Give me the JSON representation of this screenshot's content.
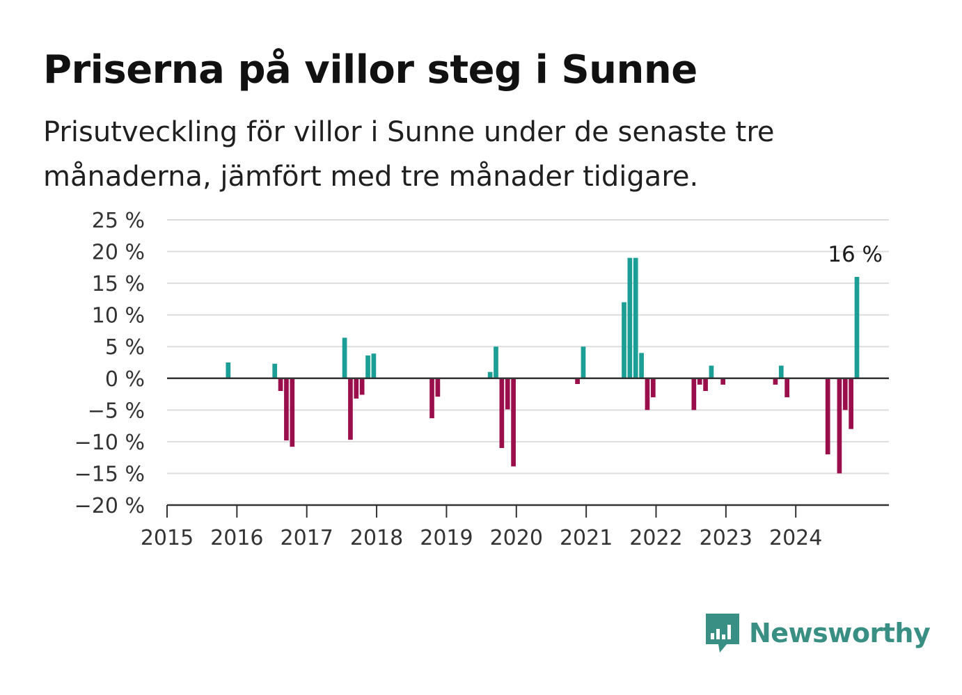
{
  "header": {
    "title": "Priserna på villor steg i Sunne",
    "subtitle": "Prisutveckling för villor i Sunne under de senaste tre månaderna, jämfört med tre månader tidigare."
  },
  "brand": {
    "name": "Newsworthy",
    "icon": "newsworthy-chat-bar-icon",
    "color": "#3a8f84"
  },
  "colors": {
    "positive": "#1a9e96",
    "negative": "#9b0e4c",
    "zero_line": "#333333",
    "grid": "#dddddd"
  },
  "chart_data": {
    "type": "bar",
    "title": "Priserna på villor steg i Sunne",
    "subtitle": "Prisutveckling för villor i Sunne under de senaste tre månaderna, jämfört med tre månader tidigare.",
    "xlabel": "",
    "ylabel": "",
    "ylim": [
      -20,
      25
    ],
    "y_ticks": [
      25,
      20,
      15,
      10,
      5,
      0,
      -5,
      -10,
      -15,
      -20
    ],
    "y_tick_labels": [
      "25 %",
      "20 %",
      "15 %",
      "10 %",
      "5 %",
      "0 %",
      "−5 %",
      "−10 %",
      "−15 %",
      "−20 %"
    ],
    "x_range": [
      "2015-01",
      "2025-05"
    ],
    "x_ticks": [
      "2015",
      "2016",
      "2017",
      "2018",
      "2019",
      "2020",
      "2021",
      "2022",
      "2023",
      "2024"
    ],
    "grid": "horizontal",
    "annotation": {
      "x": "2024-11",
      "value": 16,
      "label": "16 %"
    },
    "x": [
      "2015-11",
      "2016-07",
      "2016-08",
      "2016-09",
      "2016-10",
      "2017-07",
      "2017-08",
      "2017-09",
      "2017-10",
      "2017-11",
      "2017-12",
      "2018-10",
      "2018-11",
      "2019-08",
      "2019-09",
      "2019-10",
      "2019-11",
      "2019-12",
      "2020-11",
      "2020-12",
      "2021-07",
      "2021-08",
      "2021-09",
      "2021-10",
      "2021-11",
      "2021-12",
      "2022-07",
      "2022-08",
      "2022-09",
      "2022-10",
      "2022-12",
      "2023-09",
      "2023-10",
      "2023-11",
      "2024-06",
      "2024-08",
      "2024-09",
      "2024-10",
      "2024-11"
    ],
    "values": [
      2.5,
      2.3,
      -2,
      -9.8,
      -10.8,
      6.4,
      -9.7,
      -3.2,
      -2.6,
      3.6,
      3.9,
      -6.3,
      -2.9,
      1,
      5,
      -11,
      -4.9,
      -13.9,
      -0.9,
      5,
      12,
      19,
      19,
      4,
      -5,
      -3,
      -5,
      -1,
      -2,
      2,
      -1,
      -1,
      2,
      -3,
      -12,
      -15,
      -5,
      -8,
      16
    ]
  }
}
